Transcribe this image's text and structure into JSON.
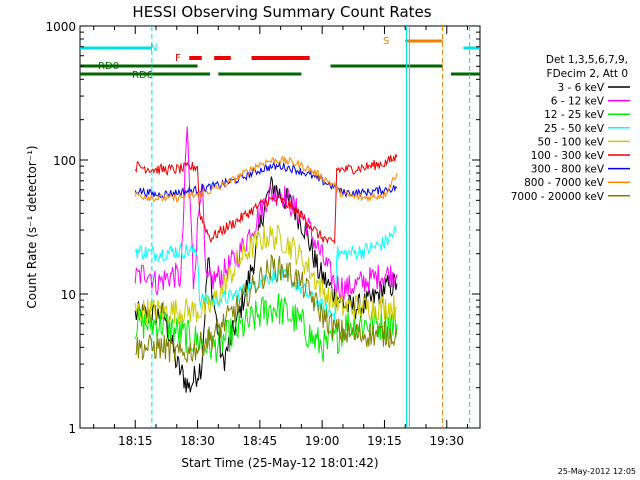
{
  "chart_data": {
    "type": "line",
    "title": "HESSI Observing Summary Count Rates",
    "xlabel": "Start Time (25-May-12 18:01:42)",
    "ylabel": "Count Rate (s⁻¹ detector⁻¹)",
    "yscale": "log",
    "ylim": [
      1,
      1000
    ],
    "xlim": [
      "18:01:42",
      "19:38:00"
    ],
    "y_ticks": [
      "1",
      "10",
      "100",
      "1000"
    ],
    "x_ticks": [
      "18:15",
      "18:30",
      "18:45",
      "19:00",
      "19:15",
      "19:30"
    ],
    "x_tick_minutes": [
      15,
      30,
      45,
      60,
      75,
      90
    ],
    "x_minutes_start": 1.7,
    "x_minutes_end": 98,
    "timestamp": "25-May-2012 12:05",
    "legend": {
      "header1": "Det 1,3,5,6,7,9,",
      "header2": "FDecim 2, Att 0"
    },
    "bars": {
      "night": {
        "label": "N",
        "color": "#00e0e0",
        "segments": [
          [
            1.7,
            19
          ],
          [
            94,
            98
          ]
        ]
      },
      "saa": {
        "label": "S",
        "color": "#f08000",
        "segments": [
          [
            80,
            89
          ]
        ]
      },
      "flare": {
        "label": "F",
        "color": "#ee0000",
        "segments": [
          [
            28,
            31
          ],
          [
            34,
            38
          ],
          [
            43,
            57
          ]
        ]
      },
      "rd0": {
        "label": "RD0",
        "color": "#006600",
        "segments": [
          [
            1.7,
            30
          ],
          [
            62,
            89
          ]
        ]
      },
      "rd6": {
        "label": "RD6",
        "color": "#006600",
        "segments": [
          [
            1.7,
            33
          ],
          [
            35,
            55
          ],
          [
            91,
            98
          ]
        ]
      }
    },
    "vlines": [
      {
        "x": 19,
        "color": "#00e0e0",
        "style": "dashed"
      },
      {
        "x": 80.3,
        "color": "#00e0e0",
        "style": "solid"
      },
      {
        "x": 81,
        "color": "#00e0e0",
        "style": "solid"
      },
      {
        "x": 89,
        "color": "#f08000",
        "style": "dashed"
      },
      {
        "x": 95.5,
        "color": "#00e0e0",
        "style": "dashed"
      }
    ],
    "series": [
      {
        "name": "3 - 6 keV",
        "color": "#000000",
        "noise": 0.1,
        "points": [
          [
            15,
            7
          ],
          [
            22,
            7
          ],
          [
            25,
            3
          ],
          [
            28,
            2
          ],
          [
            31,
            3
          ],
          [
            32.5,
            18
          ],
          [
            36,
            3
          ],
          [
            40,
            7
          ],
          [
            44,
            20
          ],
          [
            46,
            45
          ],
          [
            48,
            65
          ],
          [
            50,
            55
          ],
          [
            53,
            45
          ],
          [
            56,
            30
          ],
          [
            59,
            15
          ],
          [
            63,
            10
          ],
          [
            66,
            8
          ],
          [
            69,
            8
          ],
          [
            72,
            9
          ],
          [
            75,
            11
          ],
          [
            78,
            12
          ]
        ]
      },
      {
        "name": "6 - 12 keV",
        "color": "#ff00ff",
        "noise": 0.1,
        "points": [
          [
            15,
            13
          ],
          [
            18,
            15
          ],
          [
            20,
            12
          ],
          [
            24,
            14
          ],
          [
            26,
            13
          ],
          [
            27.5,
            180
          ],
          [
            29,
            12
          ],
          [
            31,
            80
          ],
          [
            32,
            12
          ],
          [
            36,
            14
          ],
          [
            40,
            20
          ],
          [
            44,
            35
          ],
          [
            47,
            55
          ],
          [
            50,
            58
          ],
          [
            53,
            45
          ],
          [
            56,
            35
          ],
          [
            59,
            22
          ],
          [
            63,
            12
          ],
          [
            66,
            11
          ],
          [
            69,
            12
          ],
          [
            72,
            13
          ],
          [
            75,
            14
          ],
          [
            78,
            14
          ]
        ]
      },
      {
        "name": "12 - 25 keV",
        "color": "#00ee00",
        "noise": 0.13,
        "points": [
          [
            15,
            6
          ],
          [
            22,
            6
          ],
          [
            26,
            5
          ],
          [
            30,
            4.5
          ],
          [
            34,
            4
          ],
          [
            38,
            5
          ],
          [
            42,
            6
          ],
          [
            46,
            7.5
          ],
          [
            49,
            8
          ],
          [
            52,
            7
          ],
          [
            55,
            6
          ],
          [
            58,
            4.5
          ],
          [
            61,
            4
          ],
          [
            63,
            4.5
          ],
          [
            66,
            6
          ],
          [
            70,
            6
          ],
          [
            75,
            6
          ],
          [
            78,
            6
          ]
        ]
      },
      {
        "name": "25 - 50 keV",
        "color": "#00ffff",
        "noise": 0.06,
        "points": [
          [
            15,
            21
          ],
          [
            20,
            20
          ],
          [
            25,
            21
          ],
          [
            28,
            21
          ],
          [
            30,
            21
          ],
          [
            30.5,
            9
          ],
          [
            34,
            9
          ],
          [
            38,
            9.5
          ],
          [
            42,
            11
          ],
          [
            46,
            13
          ],
          [
            49,
            14
          ],
          [
            52,
            13
          ],
          [
            55,
            11
          ],
          [
            58,
            9
          ],
          [
            61,
            7.5
          ],
          [
            63,
            7
          ],
          [
            63.5,
            20
          ],
          [
            66,
            20
          ],
          [
            70,
            21
          ],
          [
            75,
            24
          ],
          [
            78,
            30
          ]
        ]
      },
      {
        "name": "50 - 100 keV",
        "color": "#cccc00",
        "noise": 0.1,
        "points": [
          [
            15,
            7.5
          ],
          [
            25,
            7.5
          ],
          [
            30,
            7.5
          ],
          [
            33,
            8
          ],
          [
            36,
            11
          ],
          [
            40,
            18
          ],
          [
            44,
            24
          ],
          [
            47,
            27
          ],
          [
            50,
            26
          ],
          [
            53,
            22
          ],
          [
            56,
            17
          ],
          [
            59,
            12
          ],
          [
            62,
            9
          ],
          [
            65,
            8
          ],
          [
            70,
            8
          ],
          [
            75,
            8
          ],
          [
            78,
            8
          ]
        ]
      },
      {
        "name": "100 - 300 keV",
        "color": "#ee0000",
        "noise": 0.04,
        "points": [
          [
            15,
            90
          ],
          [
            20,
            85
          ],
          [
            25,
            85
          ],
          [
            30,
            90
          ],
          [
            30.5,
            40
          ],
          [
            33,
            26
          ],
          [
            36,
            30
          ],
          [
            40,
            36
          ],
          [
            44,
            44
          ],
          [
            47,
            50
          ],
          [
            50,
            50
          ],
          [
            53,
            44
          ],
          [
            56,
            36
          ],
          [
            59,
            28
          ],
          [
            62,
            24
          ],
          [
            63,
            24
          ],
          [
            63.5,
            85
          ],
          [
            66,
            85
          ],
          [
            70,
            88
          ],
          [
            75,
            95
          ],
          [
            78,
            105
          ]
        ]
      },
      {
        "name": "300 - 800 keV",
        "color": "#0000ee",
        "noise": 0.03,
        "points": [
          [
            15,
            60
          ],
          [
            20,
            55
          ],
          [
            25,
            57
          ],
          [
            30,
            60
          ],
          [
            35,
            65
          ],
          [
            40,
            72
          ],
          [
            44,
            82
          ],
          [
            47,
            88
          ],
          [
            50,
            90
          ],
          [
            53,
            86
          ],
          [
            56,
            80
          ],
          [
            59,
            72
          ],
          [
            62,
            65
          ],
          [
            65,
            57
          ],
          [
            70,
            57
          ],
          [
            75,
            60
          ],
          [
            78,
            62
          ]
        ]
      },
      {
        "name": "800 - 7000 keV",
        "color": "#ff8800",
        "noise": 0.03,
        "points": [
          [
            15,
            55
          ],
          [
            20,
            52
          ],
          [
            25,
            52
          ],
          [
            30,
            55
          ],
          [
            35,
            62
          ],
          [
            40,
            75
          ],
          [
            44,
            90
          ],
          [
            47,
            98
          ],
          [
            50,
            100
          ],
          [
            53,
            96
          ],
          [
            56,
            88
          ],
          [
            59,
            78
          ],
          [
            62,
            68
          ],
          [
            65,
            55
          ],
          [
            70,
            52
          ],
          [
            75,
            55
          ],
          [
            78,
            80
          ]
        ]
      },
      {
        "name": "7000 - 20000 keV",
        "color": "#808000",
        "noise": 0.1,
        "points": [
          [
            15,
            4
          ],
          [
            22,
            4
          ],
          [
            26,
            3.5
          ],
          [
            30,
            4
          ],
          [
            34,
            5
          ],
          [
            38,
            7
          ],
          [
            42,
            10
          ],
          [
            45,
            13
          ],
          [
            48,
            16
          ],
          [
            51,
            15
          ],
          [
            54,
            13
          ],
          [
            57,
            10
          ],
          [
            60,
            7
          ],
          [
            63,
            5.5
          ],
          [
            66,
            5
          ],
          [
            70,
            5
          ],
          [
            75,
            5
          ],
          [
            78,
            5
          ]
        ]
      }
    ]
  }
}
